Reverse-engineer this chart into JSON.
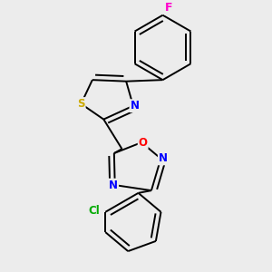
{
  "background_color": "#ececec",
  "bond_color": "#000000",
  "atom_colors": {
    "S": "#ccaa00",
    "N": "#0000ff",
    "O": "#ff0000",
    "F": "#ff00cc",
    "Cl": "#00aa00",
    "C": "#000000"
  },
  "bond_width": 1.4,
  "font_size": 8.5
}
